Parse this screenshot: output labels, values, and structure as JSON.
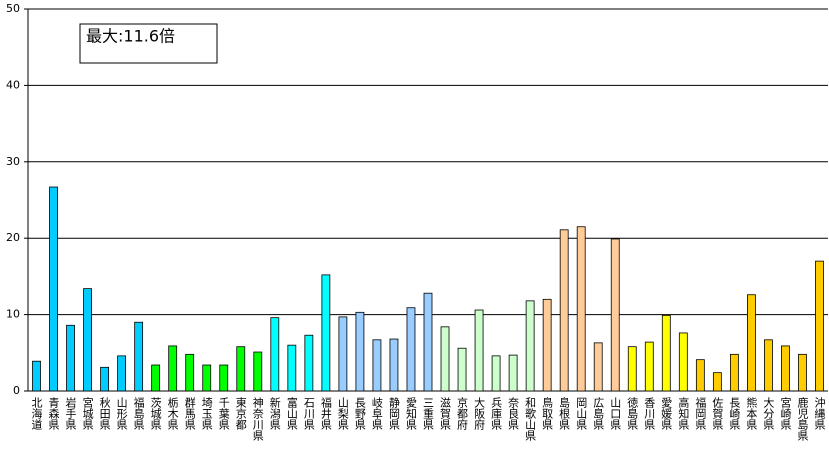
{
  "chart_data": {
    "type": "bar",
    "annotation": "最大:11.6倍",
    "categories": [
      "北海道",
      "青森県",
      "岩手県",
      "宮城県",
      "秋田県",
      "山形県",
      "福島県",
      "茨城県",
      "栃木県",
      "群馬県",
      "埼玉県",
      "千葉県",
      "東京都",
      "神奈川県",
      "新潟県",
      "富山県",
      "石川県",
      "福井県",
      "山梨県",
      "長野県",
      "岐阜県",
      "静岡県",
      "愛知県",
      "三重県",
      "滋賀県",
      "京都府",
      "大阪府",
      "兵庫県",
      "奈良県",
      "和歌山県",
      "鳥取県",
      "島根県",
      "岡山県",
      "広島県",
      "山口県",
      "徳島県",
      "香川県",
      "愛媛県",
      "高知県",
      "福岡県",
      "佐賀県",
      "長崎県",
      "熊本県",
      "大分県",
      "宮崎県",
      "鹿児島県",
      "沖縄県"
    ],
    "values": [
      3.9,
      26.7,
      8.6,
      13.4,
      3.1,
      4.6,
      9.0,
      3.4,
      5.9,
      4.8,
      3.4,
      3.4,
      5.8,
      5.1,
      9.6,
      6.0,
      7.3,
      15.2,
      9.7,
      10.3,
      6.7,
      6.8,
      10.9,
      12.8,
      8.4,
      5.6,
      10.6,
      4.6,
      4.7,
      11.8,
      12.0,
      21.1,
      21.5,
      6.3,
      19.9,
      5.8,
      6.4,
      9.9,
      7.6,
      4.1,
      2.4,
      4.8,
      12.6,
      6.7,
      5.9,
      4.8,
      17.0
    ],
    "colors": [
      "#00ccff",
      "#00ccff",
      "#00ccff",
      "#00ccff",
      "#00ccff",
      "#00ccff",
      "#00ccff",
      "#00ff00",
      "#00ff00",
      "#00ff00",
      "#00ff00",
      "#00ff00",
      "#00ff00",
      "#00ff00",
      "#00ffff",
      "#00ffff",
      "#00ffff",
      "#00ffff",
      "#99ccff",
      "#99ccff",
      "#99ccff",
      "#99ccff",
      "#99ccff",
      "#99ccff",
      "#ccffcc",
      "#ccffcc",
      "#ccffcc",
      "#ccffcc",
      "#ccffcc",
      "#ccffcc",
      "#ffcc99",
      "#ffcc99",
      "#ffcc99",
      "#ffcc99",
      "#ffcc99",
      "#ffff00",
      "#ffff00",
      "#ffff00",
      "#ffff00",
      "#ffcc00",
      "#ffcc00",
      "#ffcc00",
      "#ffcc00",
      "#ffcc00",
      "#ffcc00",
      "#ffcc00",
      "#ffcc00"
    ],
    "ylim": [
      0,
      50
    ],
    "yticks": [
      0,
      10,
      20,
      30,
      40,
      50
    ],
    "grid": true
  }
}
